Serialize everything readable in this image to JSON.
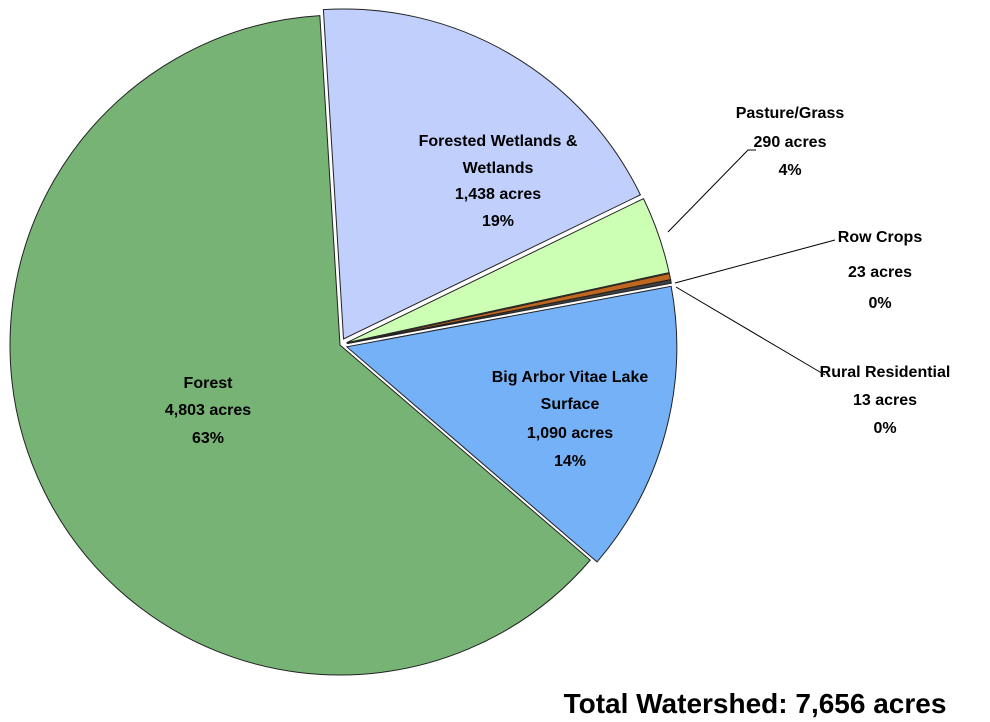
{
  "chart_data": {
    "type": "pie",
    "categories": [
      "Forested Wetlands & Wetlands",
      "Pasture/Grass",
      "Row Crops",
      "Rural Residential",
      "Big Arbor Vitae Lake Surface",
      "Forest"
    ],
    "values": [
      1438,
      290,
      23,
      13,
      1090,
      4803
    ],
    "value_labels": [
      "1,438 acres",
      "290 acres",
      "23 acres",
      "13 acres",
      "1,090 acres",
      "4,803 acres"
    ],
    "percent_labels": [
      "19%",
      "4%",
      "0%",
      "0%",
      "14%",
      "63%"
    ],
    "colors": [
      "#c0cffc",
      "#ccffb3",
      "#c0661e",
      "#404040",
      "#75b1f7",
      "#76b375"
    ],
    "annotation": "Total Watershed: 7,656 acres"
  }
}
